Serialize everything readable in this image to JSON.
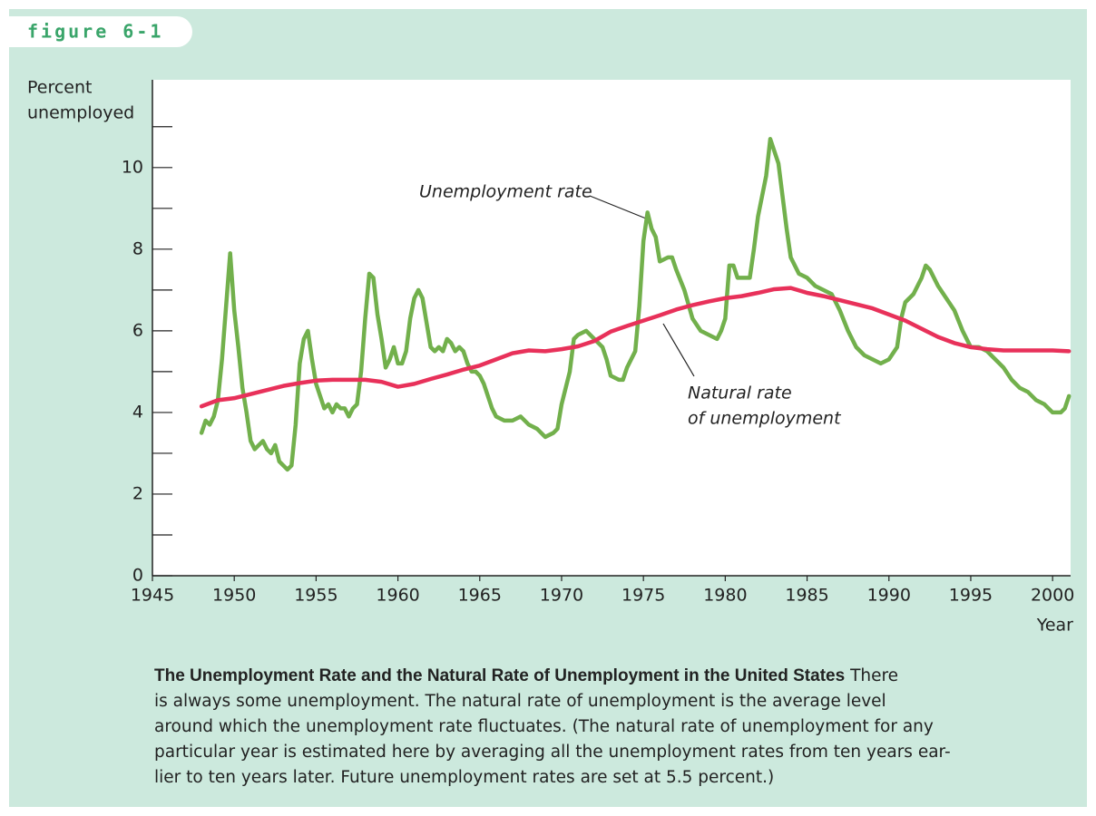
{
  "figure_label": "figure 6-1",
  "chart_data": {
    "type": "line",
    "ylabel": [
      "Percent",
      "unemployed"
    ],
    "xlabel": "Year",
    "xlim": [
      1945,
      2001.1
    ],
    "xticks": [
      1945,
      1950,
      1955,
      1960,
      1965,
      1970,
      1975,
      1980,
      1985,
      1990,
      1995,
      2000
    ],
    "ylim": [
      0,
      12.15
    ],
    "yticks": [
      0,
      2,
      4,
      6,
      8,
      10
    ],
    "yminor_ticks": [
      1,
      3,
      5,
      7,
      9,
      11
    ],
    "series": [
      {
        "color": "#72b04c",
        "x": [
          1948,
          1948.25,
          1948.5,
          1948.75,
          1949,
          1949.25,
          1949.5,
          1949.75,
          1950,
          1950.25,
          1950.5,
          1950.75,
          1951,
          1951.25,
          1951.5,
          1951.75,
          1952,
          1952.25,
          1952.5,
          1952.75,
          1953,
          1953.25,
          1953.5,
          1953.75,
          1954,
          1954.25,
          1954.5,
          1954.75,
          1955,
          1955.25,
          1955.5,
          1955.75,
          1956,
          1956.25,
          1956.5,
          1956.75,
          1957,
          1957.25,
          1957.5,
          1957.75,
          1958,
          1958.25,
          1958.5,
          1958.75,
          1959,
          1959.25,
          1959.5,
          1959.75,
          1960,
          1960.25,
          1960.5,
          1960.75,
          1961,
          1961.25,
          1961.5,
          1961.75,
          1962,
          1962.25,
          1962.5,
          1962.75,
          1963,
          1963.25,
          1963.5,
          1963.75,
          1964,
          1964.25,
          1964.5,
          1964.75,
          1965,
          1965.25,
          1965.5,
          1965.75,
          1966,
          1966.5,
          1967,
          1967.5,
          1968,
          1968.5,
          1969,
          1969.5,
          1969.75,
          1970,
          1970.5,
          1970.75,
          1971,
          1971.5,
          1972,
          1972.5,
          1972.75,
          1973,
          1973.5,
          1973.75,
          1974,
          1974.5,
          1974.75,
          1975,
          1975.25,
          1975.5,
          1975.75,
          1976,
          1976.5,
          1976.75,
          1977,
          1977.5,
          1978,
          1978.5,
          1979,
          1979.5,
          1979.75,
          1980,
          1980.25,
          1980.5,
          1980.75,
          1981,
          1981.5,
          1981.75,
          1982,
          1982.5,
          1982.75,
          1983,
          1983.25,
          1983.5,
          1983.75,
          1984,
          1984.5,
          1985,
          1985.5,
          1986,
          1986.5,
          1987,
          1987.5,
          1988,
          1988.5,
          1989,
          1989.5,
          1990,
          1990.5,
          1990.75,
          1991,
          1991.5,
          1992,
          1992.25,
          1992.5,
          1993,
          1993.5,
          1994,
          1994.5,
          1995,
          1995.5,
          1996,
          1996.5,
          1997,
          1997.5,
          1998,
          1998.5,
          1999,
          1999.5,
          2000,
          2000.5,
          2000.75,
          2001
        ],
        "values": [
          3.5,
          3.8,
          3.7,
          3.9,
          4.3,
          5.3,
          6.6,
          7.9,
          6.5,
          5.6,
          4.6,
          4.0,
          3.3,
          3.1,
          3.2,
          3.3,
          3.1,
          3.0,
          3.2,
          2.8,
          2.7,
          2.6,
          2.7,
          3.7,
          5.2,
          5.8,
          6.0,
          5.3,
          4.7,
          4.4,
          4.1,
          4.2,
          4.0,
          4.2,
          4.1,
          4.1,
          3.9,
          4.1,
          4.2,
          5.0,
          6.3,
          7.4,
          7.3,
          6.4,
          5.8,
          5.1,
          5.3,
          5.6,
          5.2,
          5.2,
          5.5,
          6.3,
          6.8,
          7.0,
          6.8,
          6.2,
          5.6,
          5.5,
          5.6,
          5.5,
          5.8,
          5.7,
          5.5,
          5.6,
          5.5,
          5.2,
          5.0,
          5.0,
          4.9,
          4.7,
          4.4,
          4.1,
          3.9,
          3.8,
          3.8,
          3.9,
          3.7,
          3.6,
          3.4,
          3.5,
          3.6,
          4.2,
          5.0,
          5.8,
          5.9,
          6.0,
          5.8,
          5.6,
          5.3,
          4.9,
          4.8,
          4.8,
          5.1,
          5.5,
          6.6,
          8.2,
          8.9,
          8.5,
          8.3,
          7.7,
          7.8,
          7.8,
          7.5,
          7.0,
          6.3,
          6.0,
          5.9,
          5.8,
          6.0,
          6.3,
          7.6,
          7.6,
          7.3,
          7.3,
          7.3,
          8.0,
          8.8,
          9.8,
          10.7,
          10.4,
          10.1,
          9.3,
          8.5,
          7.8,
          7.4,
          7.3,
          7.1,
          7.0,
          6.9,
          6.5,
          6.0,
          5.6,
          5.4,
          5.3,
          5.2,
          5.3,
          5.6,
          6.3,
          6.7,
          6.9,
          7.3,
          7.6,
          7.5,
          7.1,
          6.8,
          6.5,
          6.0,
          5.6,
          5.6,
          5.5,
          5.3,
          5.1,
          4.8,
          4.6,
          4.5,
          4.3,
          4.2,
          4.0,
          4.0,
          4.1,
          4.4
        ]
      },
      {
        "color": "#e8315a",
        "x": [
          1948,
          1949,
          1950,
          1951,
          1952,
          1953,
          1954,
          1955,
          1956,
          1957,
          1958,
          1959,
          1960,
          1961,
          1962,
          1963,
          1964,
          1965,
          1966,
          1967,
          1968,
          1969,
          1970,
          1971,
          1972,
          1973,
          1974,
          1975,
          1976,
          1977,
          1978,
          1979,
          1980,
          1981,
          1982,
          1983,
          1984,
          1985,
          1986,
          1987,
          1988,
          1989,
          1990,
          1991,
          1992,
          1993,
          1994,
          1995,
          1996,
          1997,
          1998,
          1999,
          2000,
          2001
        ],
        "values": [
          4.15,
          4.3,
          4.35,
          4.45,
          4.55,
          4.65,
          4.72,
          4.78,
          4.8,
          4.8,
          4.8,
          4.75,
          4.63,
          4.7,
          4.82,
          4.93,
          5.05,
          5.15,
          5.3,
          5.45,
          5.52,
          5.5,
          5.55,
          5.62,
          5.75,
          5.98,
          6.12,
          6.25,
          6.38,
          6.52,
          6.63,
          6.72,
          6.8,
          6.85,
          6.93,
          7.02,
          7.05,
          6.93,
          6.85,
          6.75,
          6.65,
          6.55,
          6.4,
          6.25,
          6.05,
          5.85,
          5.7,
          5.6,
          5.55,
          5.52,
          5.52,
          5.52,
          5.52,
          5.5
        ]
      }
    ],
    "annotations": [
      {
        "lines": [
          "Unemployment rate"
        ]
      },
      {
        "lines": [
          "Natural rate",
          "of unemployment"
        ]
      }
    ]
  },
  "caption": {
    "title": "The Unemployment Rate and the Natural Rate of Unemployment in the United States",
    "lines": [
      "There",
      "is always some unemployment. The natural rate of unemployment is the average level",
      "around which the unemployment rate fluctuates. (The natural rate of unemployment for any",
      "particular year is estimated here by averaging all the unemployment rates from ten years ear-",
      "lier to ten years later. Future unemployment rates are set at 5.5 percent.)"
    ]
  }
}
